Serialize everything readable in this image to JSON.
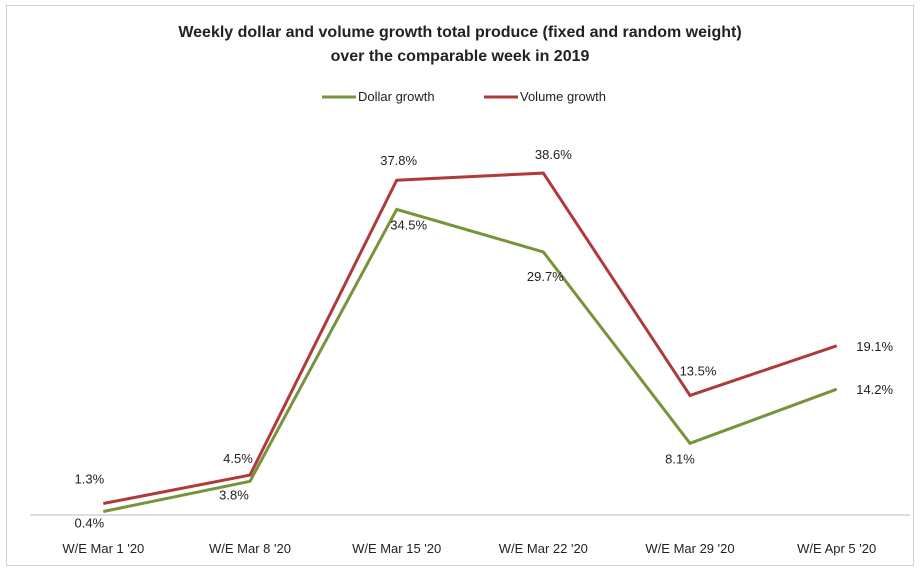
{
  "chart_data": {
    "type": "line",
    "title_line1": "Weekly dollar and volume growth  total produce (fixed and random weight)",
    "title_line2": "over the comparable week in 2019",
    "categories": [
      "W/E Mar 1 '20",
      "W/E Mar 8 '20",
      "W/E Mar 15 '20",
      "W/E Mar 22 '20",
      "W/E Mar 29 '20",
      "W/E Apr 5 '20"
    ],
    "series": [
      {
        "name": "Dollar growth",
        "color": "#77933c",
        "values": [
          0.4,
          3.8,
          34.5,
          29.7,
          8.1,
          14.2
        ],
        "labels": [
          "0.4%",
          "3.8%",
          "34.5%",
          "29.7%",
          "8.1%",
          "14.2%"
        ]
      },
      {
        "name": "Volume growth",
        "color": "#b03a3a",
        "values": [
          1.3,
          4.5,
          37.8,
          38.6,
          13.5,
          19.1
        ],
        "labels": [
          "1.3%",
          "4.5%",
          "37.8%",
          "38.6%",
          "13.5%",
          "19.1%"
        ]
      }
    ],
    "ylim": [
      0,
      42
    ],
    "legend_position": "top-center",
    "grid": false
  }
}
